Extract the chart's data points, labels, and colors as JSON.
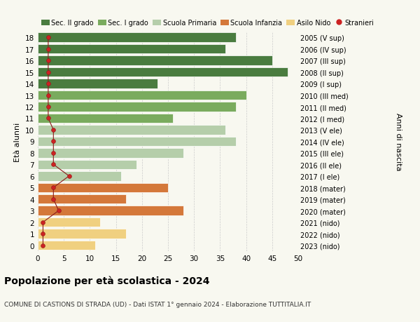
{
  "ages": [
    18,
    17,
    16,
    15,
    14,
    13,
    12,
    11,
    10,
    9,
    8,
    7,
    6,
    5,
    4,
    3,
    2,
    1,
    0
  ],
  "right_labels": [
    "2005 (V sup)",
    "2006 (IV sup)",
    "2007 (III sup)",
    "2008 (II sup)",
    "2009 (I sup)",
    "2010 (III med)",
    "2011 (II med)",
    "2012 (I med)",
    "2013 (V ele)",
    "2014 (IV ele)",
    "2015 (III ele)",
    "2016 (II ele)",
    "2017 (I ele)",
    "2018 (mater)",
    "2019 (mater)",
    "2020 (mater)",
    "2021 (nido)",
    "2022 (nido)",
    "2023 (nido)"
  ],
  "bar_values": [
    38,
    36,
    45,
    48,
    23,
    40,
    38,
    26,
    36,
    38,
    28,
    19,
    16,
    25,
    17,
    28,
    12,
    17,
    11
  ],
  "bar_colors": [
    "#4a7c3f",
    "#4a7c3f",
    "#4a7c3f",
    "#4a7c3f",
    "#4a7c3f",
    "#7aab5e",
    "#7aab5e",
    "#7aab5e",
    "#b5ceaa",
    "#b5ceaa",
    "#b5ceaa",
    "#b5ceaa",
    "#b5ceaa",
    "#d4783a",
    "#d4783a",
    "#d4783a",
    "#f0d080",
    "#f0d080",
    "#f0d080"
  ],
  "stranieri_values": [
    2,
    2,
    2,
    2,
    2,
    2,
    2,
    2,
    3,
    3,
    3,
    3,
    6,
    3,
    3,
    4,
    1,
    1,
    1
  ],
  "legend_labels": [
    "Sec. II grado",
    "Sec. I grado",
    "Scuola Primaria",
    "Scuola Infanzia",
    "Asilo Nido",
    "Stranieri"
  ],
  "legend_colors": [
    "#4a7c3f",
    "#7aab5e",
    "#b5ceaa",
    "#d4783a",
    "#f0d080",
    "#cc2222"
  ],
  "title": "Popolazione per età scolastica - 2024",
  "subtitle": "COMUNE DI CASTIONS DI STRADA (UD) - Dati ISTAT 1° gennaio 2024 - Elaborazione TUTTITALIA.IT",
  "ylabel_left": "Età alunni",
  "ylabel_right": "Anni di nascita",
  "xlim": [
    0,
    50
  ],
  "xticks": [
    0,
    5,
    10,
    15,
    20,
    25,
    30,
    35,
    40,
    45,
    50
  ],
  "bg_color": "#f8f8f0",
  "bar_height": 0.82
}
